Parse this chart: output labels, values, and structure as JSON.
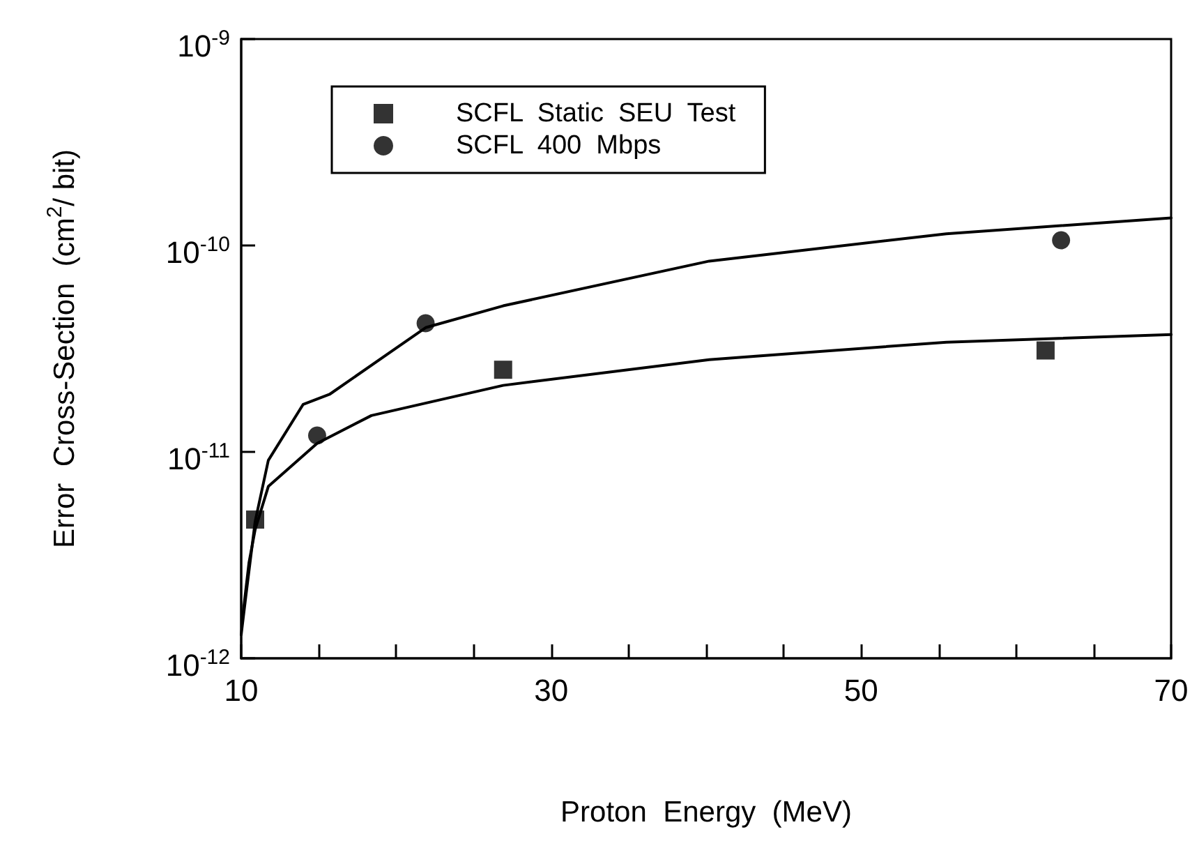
{
  "chart_data": {
    "type": "scatter",
    "xlabel": "Proton  Energy  (MeV)",
    "ylabel": "Error  Cross-Section  (cm$^{2}$/ bit)",
    "log": "y",
    "xlim": [
      10,
      70
    ],
    "ylim": [
      1e-12,
      1e-09
    ],
    "xticks": [
      10,
      {
        "value": 15,
        "label": null
      },
      {
        "value": 20,
        "label": null
      },
      {
        "value": 25,
        "label": null
      },
      30,
      {
        "value": 35,
        "label": null
      },
      {
        "value": 40,
        "label": null
      },
      {
        "value": 45,
        "label": null
      },
      50,
      {
        "value": 55,
        "label": null
      },
      {
        "value": 60,
        "label": null
      },
      {
        "value": 65,
        "label": null
      },
      70
    ],
    "yticks": [
      {
        "value": 1e-12,
        "label": "10$^{-12}$"
      },
      {
        "value": 1e-11,
        "label": "10$^{-11}$"
      },
      {
        "value": 1e-10,
        "label": "10$^{-10}$"
      },
      {
        "value": 1e-09,
        "label": "10$^{-9}$"
      }
    ],
    "grid": false,
    "legend": "top left",
    "series": [
      {
        "name": "SCFL  Static  SEU  Test",
        "color": "#000000",
        "marker": "square",
        "x": [
          10.9,
          26.9,
          61.9
        ],
        "values": [
          4.7e-12,
          2.5e-11,
          3.1e-11
        ]
      },
      {
        "name": "SCFL  400  Mbps",
        "color": "#000000",
        "marker": "circle",
        "x": [
          14.9,
          21.9,
          62.9
        ],
        "values": [
          1.2e-11,
          4.2e-11,
          1.06e-10
        ]
      },
      {
        "type": "line",
        "color": "#000000",
        "marker": "none",
        "x": [
          10,
          10.3,
          10.9,
          11.75,
          14,
          15.7,
          21.9,
          26.9,
          40.2,
          55.5,
          70
        ],
        "values": [
          1.3e-12,
          2e-12,
          4.6e-12,
          9.1e-12,
          1.7e-11,
          1.9e-11,
          4e-11,
          5.1e-11,
          8.4e-11,
          1.14e-10,
          1.36e-10
        ]
      },
      {
        "type": "line",
        "color": "#000000",
        "marker": "none",
        "x": [
          10.1,
          10.5,
          10.9,
          11.75,
          14.9,
          18.4,
          26.9,
          40.2,
          55.5,
          70
        ],
        "values": [
          1.6e-12,
          2.9e-12,
          4.2e-12,
          6.8e-12,
          1.1e-11,
          1.5e-11,
          2.1e-11,
          2.8e-11,
          3.4e-11,
          3.7e-11
        ]
      }
    ]
  }
}
